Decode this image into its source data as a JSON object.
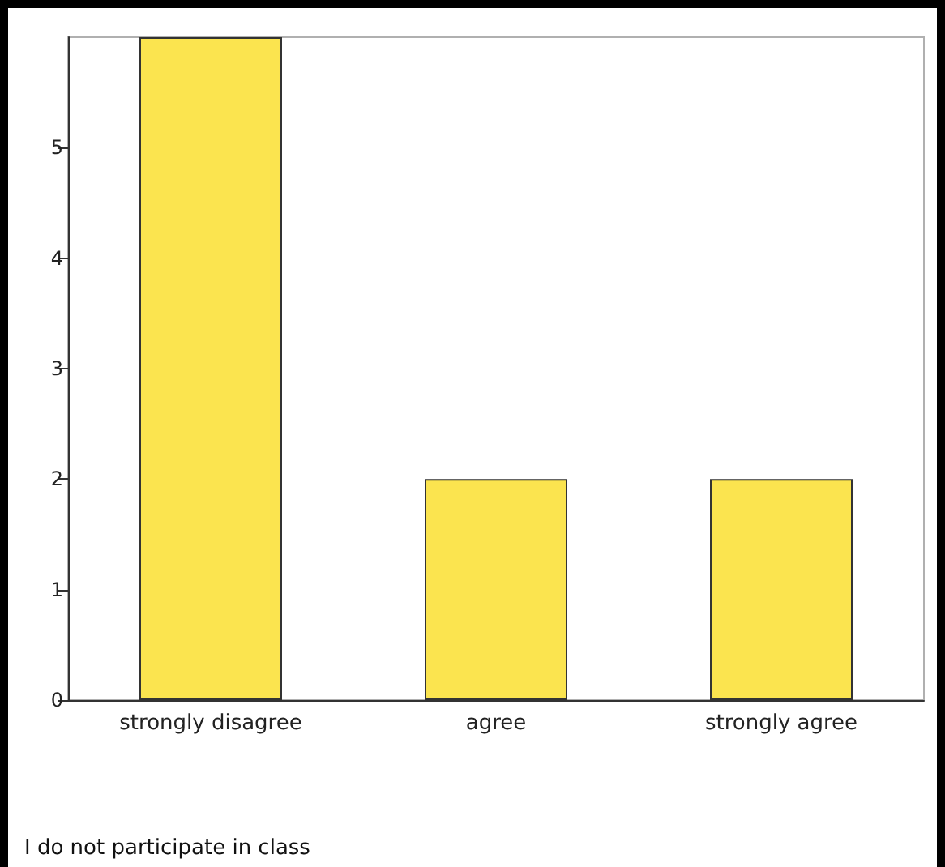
{
  "chart_data": {
    "type": "bar",
    "xlabel": "I do not participate in class",
    "categories": [
      "strongly disagree",
      "agree",
      "strongly agree"
    ],
    "values": [
      6,
      2,
      2
    ],
    "color": "#fbe44f",
    "ylim": [
      0,
      6
    ],
    "yticks": [
      0,
      1,
      2,
      3,
      4,
      5
    ],
    "grid": false
  }
}
